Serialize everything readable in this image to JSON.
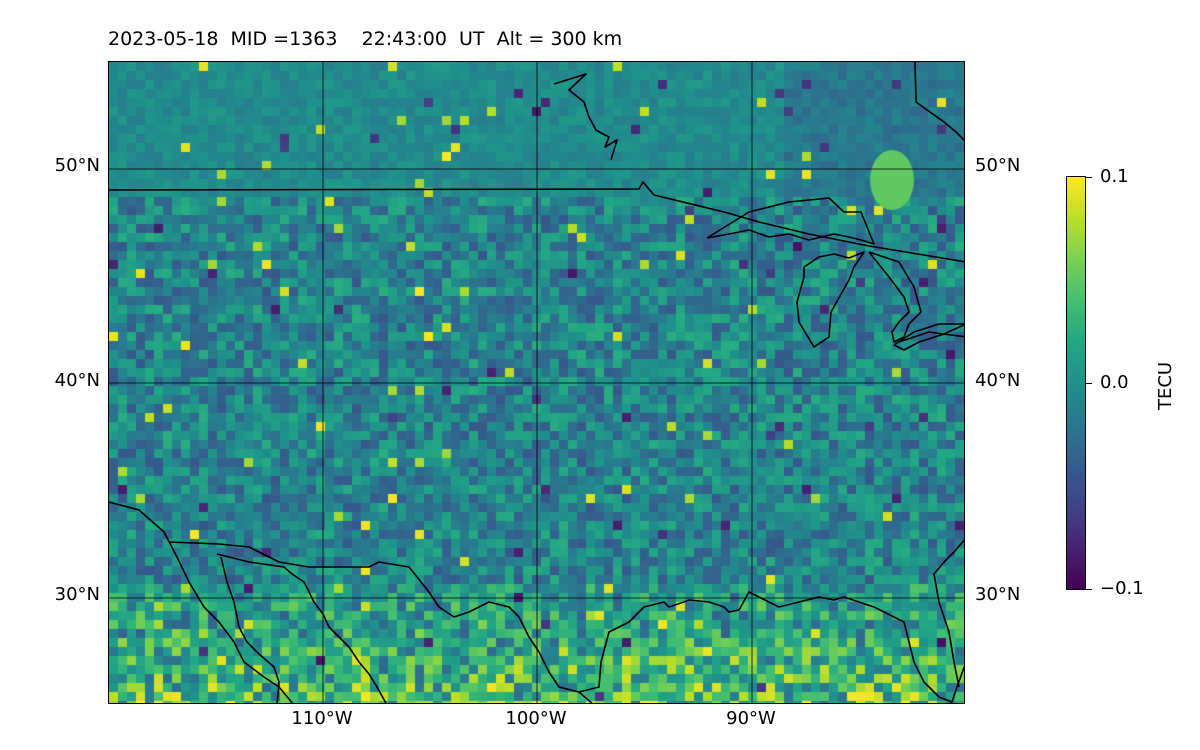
{
  "header": {
    "title": "2023-05-18  MID =1363    22:43:00  UT  Alt = 300 km"
  },
  "map": {
    "lat_ticks": [
      "50°N",
      "40°N",
      "30°N"
    ],
    "lon_ticks": [
      "110°W",
      "100°W",
      "90°W"
    ],
    "lat_range": [
      25,
      55
    ],
    "lon_range": [
      -120,
      -80
    ],
    "grid": true,
    "colormap": "viridis",
    "colors": {
      "viridis_low": "#440154",
      "viridis_mid": "#21918c",
      "viridis_high": "#fde725",
      "coastline": "#000000"
    }
  },
  "colorbar": {
    "label": "TECU",
    "max_label": "0.1",
    "mid_label": "0.0",
    "min_label": "−0.1",
    "range": [
      -0.1,
      0.1
    ]
  }
}
